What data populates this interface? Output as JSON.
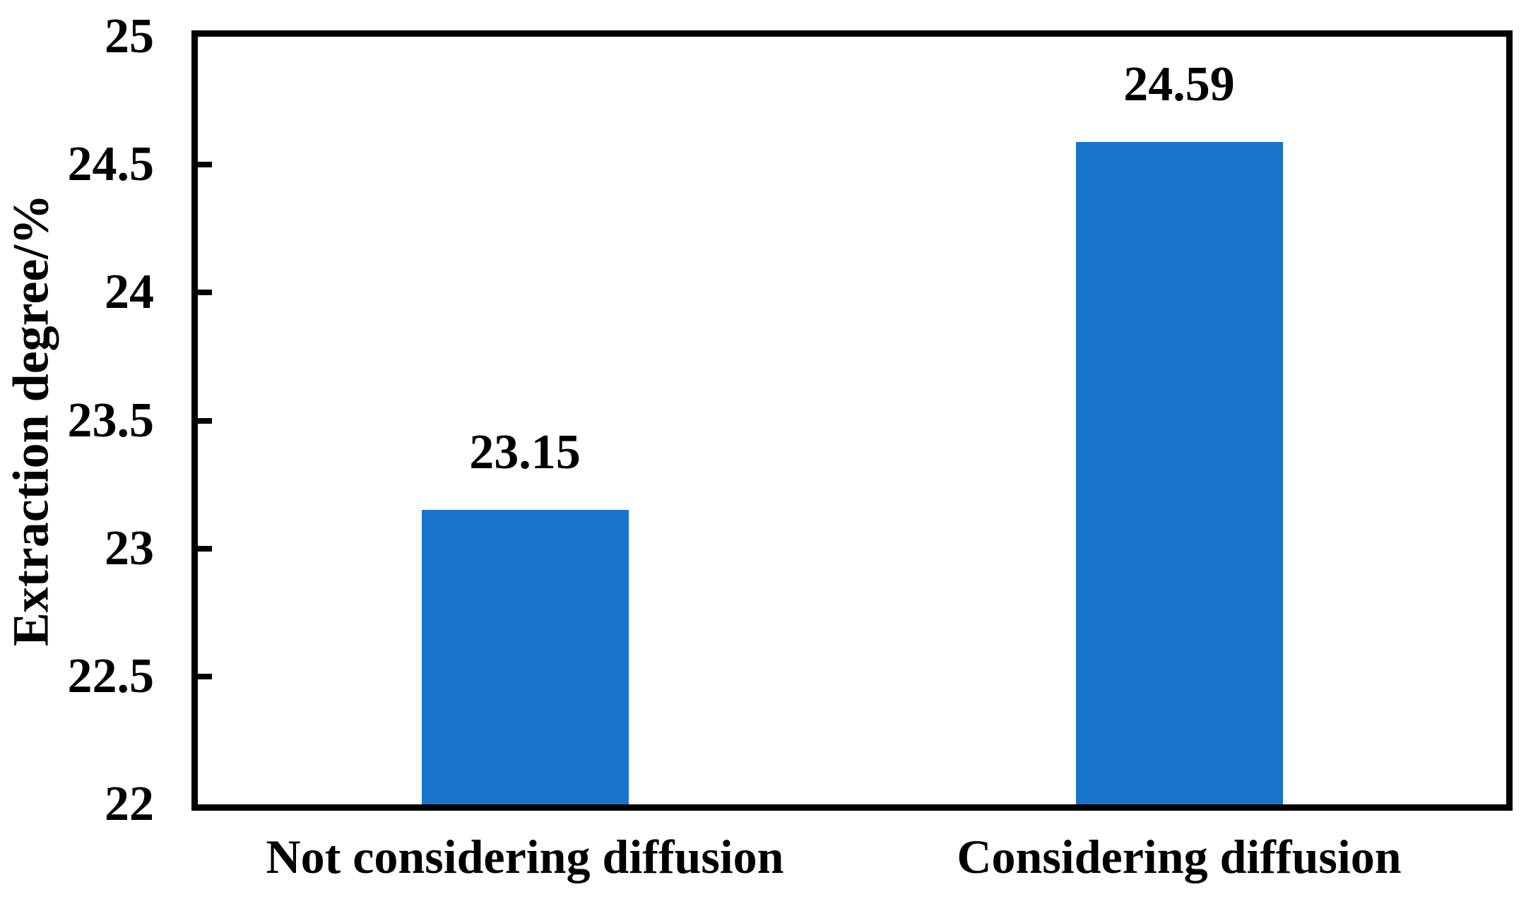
{
  "chart_data": {
    "type": "bar",
    "categories": [
      "Not considering diffusion",
      "Considering diffusion"
    ],
    "values": [
      23.15,
      24.59
    ],
    "value_labels": [
      "23.15",
      "24.59"
    ],
    "title": "",
    "xlabel": "",
    "ylabel": "Extraction degree/%",
    "ylim": [
      22,
      25
    ],
    "yticks": [
      22,
      22.5,
      23,
      23.5,
      24,
      24.5,
      25
    ],
    "ytick_labels": [
      "22",
      "22.5",
      "23",
      "23.5",
      "24",
      "24.5",
      "25"
    ],
    "grid": false,
    "legend": "none",
    "colors": {
      "bar_fill": "#1874CA",
      "axis": "#000000",
      "text": "#000000",
      "background": "#ffffff"
    }
  }
}
